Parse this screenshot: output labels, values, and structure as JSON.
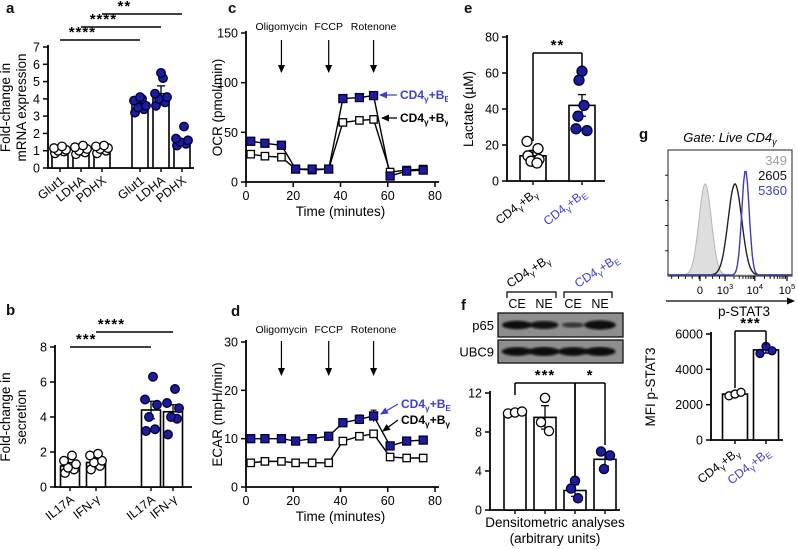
{
  "figure_type": "multi-panel scientific figure",
  "panel_labels": {
    "a": "a",
    "b": "b",
    "c": "c",
    "d": "d",
    "e": "e",
    "f": "f",
    "g": "g"
  },
  "colors": {
    "navy": "#1c1c9e",
    "blue_text": "#4040c2",
    "blue_line": "#3c3cba",
    "gray_text": "#9e9e9e",
    "gray_fill": "#dedede",
    "blot_bg": "#8e8e8e"
  },
  "chart_data": [
    {
      "panel": "a",
      "type": "bar",
      "ylabel": "Fold-change in\nmRNA expression",
      "ylim": [
        0,
        7
      ],
      "yticks": [
        0,
        1,
        2,
        3,
        4,
        5,
        6,
        7
      ],
      "categories": [
        "Glut1",
        "LDHA",
        "PDHX",
        "Glut1",
        "LDHA",
        "PDHX"
      ],
      "values": [
        1.0,
        1.0,
        1.1,
        3.7,
        4.3,
        1.5
      ],
      "errors": [
        0.1,
        0.12,
        0.1,
        0.2,
        0.45,
        0.2
      ],
      "point_styles": [
        "open",
        "open",
        "open",
        "navy",
        "navy",
        "navy"
      ],
      "points": [
        [
          0.85,
          0.95,
          1.0,
          1.05,
          1.15,
          1.25
        ],
        [
          0.8,
          0.9,
          1.0,
          1.1,
          1.2,
          1.3
        ],
        [
          0.85,
          1.0,
          1.1,
          1.15,
          1.25,
          1.3
        ],
        [
          3.2,
          3.4,
          3.5,
          3.6,
          3.9,
          4.0,
          4.1
        ],
        [
          3.6,
          3.8,
          4.0,
          4.1,
          4.3,
          5.2,
          5.5
        ],
        [
          1.3,
          1.4,
          1.5,
          1.6,
          1.7,
          2.4
        ]
      ],
      "sig": [
        {
          "from": 0,
          "to": 3,
          "label": "****"
        },
        {
          "from": 1,
          "to": 4,
          "label": "****"
        },
        {
          "from": 2,
          "to": 5,
          "label": "**"
        }
      ]
    },
    {
      "panel": "b",
      "type": "bar",
      "ylabel": "Fold-change in\nsecretion",
      "ylim": [
        0,
        8
      ],
      "yticks": [
        0,
        2,
        4,
        6,
        8
      ],
      "categories": [
        "IL17A",
        "IFN-γ",
        "IL17A",
        "IFN-γ"
      ],
      "values": [
        1.2,
        1.4,
        4.4,
        4.3
      ],
      "errors": [
        0.2,
        0.2,
        0.5,
        0.4
      ],
      "point_styles": [
        "open",
        "open",
        "navy",
        "navy"
      ],
      "points": [
        [
          0.8,
          1.0,
          1.1,
          1.3,
          1.5,
          1.8
        ],
        [
          1.0,
          1.2,
          1.4,
          1.5,
          1.8,
          1.9
        ],
        [
          3.2,
          3.3,
          4.0,
          4.7,
          5.0,
          6.3
        ],
        [
          3.0,
          3.9,
          4.0,
          4.5,
          4.8,
          5.6
        ]
      ],
      "sig": [
        {
          "from": 0,
          "to": 2,
          "label": "***"
        },
        {
          "from": 1,
          "to": 3,
          "label": "****"
        }
      ]
    },
    {
      "panel": "c",
      "type": "line",
      "ylabel": "OCR (pmol/min)",
      "xlabel": "Time (minutes)",
      "ylim": [
        0,
        150
      ],
      "yticks": [
        0,
        50,
        100,
        150
      ],
      "xlim": [
        0,
        80
      ],
      "xticks": [
        0,
        20,
        40,
        60,
        80
      ],
      "x": [
        2,
        8,
        15,
        21,
        28,
        35,
        41,
        48,
        54,
        61,
        68,
        75
      ],
      "annotations": [
        "Oligomycin",
        "FCCP",
        "Rotenone"
      ],
      "annotation_x": [
        15,
        35,
        54
      ],
      "series": [
        {
          "name": "CD4~γ~+B~E~",
          "style": "navy",
          "values": [
            41,
            39,
            37,
            13,
            13,
            13,
            84,
            85,
            87,
            6,
            11,
            12
          ]
        },
        {
          "name": "CD4~γ~+B~γ~",
          "style": "open",
          "values": [
            28,
            26,
            25,
            13,
            12,
            13,
            60,
            62,
            63,
            10,
            12,
            13
          ]
        }
      ]
    },
    {
      "panel": "d",
      "type": "line",
      "ylabel": "ECAR (mpH/min)",
      "xlabel": "Time (minutes)",
      "ylim": [
        0,
        30
      ],
      "yticks": [
        0,
        10,
        20,
        30
      ],
      "xlim": [
        0,
        80
      ],
      "xticks": [
        0,
        20,
        40,
        60,
        80
      ],
      "x": [
        2,
        8,
        15,
        21,
        28,
        35,
        41,
        48,
        54,
        61,
        68,
        75
      ],
      "annotations": [
        "Oligomycin",
        "FCCP",
        "Rotenone"
      ],
      "annotation_x": [
        15,
        35,
        54
      ],
      "series": [
        {
          "name": "CD4~γ~+B~E~",
          "style": "navy",
          "values": [
            10,
            10,
            10,
            9.5,
            10,
            10.5,
            13.3,
            14,
            14.7,
            8.5,
            9.5,
            9.7
          ],
          "errors": [
            0,
            0,
            0,
            0,
            0,
            0,
            0,
            0.9,
            1.2,
            0,
            0,
            0
          ]
        },
        {
          "name": "CD4~γ~+B~γ~",
          "style": "open",
          "values": [
            5,
            5.3,
            5.3,
            5,
            5,
            5,
            9.5,
            10.5,
            11,
            6.2,
            6,
            6
          ],
          "errors": [
            0,
            0,
            0,
            0,
            0,
            0,
            0,
            0.6,
            0.7,
            0,
            0,
            0
          ]
        }
      ]
    },
    {
      "panel": "e",
      "type": "bar",
      "ylabel": "Lactate (µM)",
      "ylim": [
        0,
        80
      ],
      "yticks": [
        0,
        20,
        40,
        60,
        80
      ],
      "categories": [
        "CD4~γ~+B~γ~",
        "CD4~γ~+B~E~"
      ],
      "cat_colors": [
        "black",
        "blue"
      ],
      "values": [
        14,
        42
      ],
      "errors": [
        3,
        6
      ],
      "point_styles": [
        "open",
        "navy"
      ],
      "points": [
        [
          22,
          18,
          14,
          12,
          11,
          10
        ],
        [
          61,
          56,
          42,
          36,
          29,
          28
        ]
      ],
      "sig": [
        {
          "from": 0,
          "to": 1,
          "label": "**"
        }
      ]
    },
    {
      "panel": "f-blot",
      "type": "blot",
      "group_labels": [
        {
          "text": "CD4~γ~+B~γ~",
          "color": "black"
        },
        {
          "text": "CD4~γ~+B~E~",
          "color": "blue"
        }
      ],
      "lane_labels": [
        "CE",
        "NE",
        "CE",
        "NE"
      ],
      "rows": [
        {
          "label": "p65",
          "bands": [
            1.0,
            0.92,
            0.38,
            1.15
          ]
        },
        {
          "label": "UBC9",
          "bands": [
            1.05,
            1.1,
            1.05,
            1.1
          ]
        }
      ]
    },
    {
      "panel": "f-bar",
      "type": "bar",
      "xlabel": "Densitometric analyses\n(arbitrary units)",
      "ylim": [
        0,
        12
      ],
      "yticks": [
        0,
        4,
        8,
        12
      ],
      "values": [
        10,
        9.5,
        2,
        5.2
      ],
      "errors": [
        0.2,
        1.2,
        0.6,
        0.7
      ],
      "point_styles": [
        "open",
        "open",
        "navy",
        "navy"
      ],
      "points": [
        [
          9.9,
          10,
          10.1
        ],
        [
          11.5,
          9.0,
          8.1
        ],
        [
          3.0,
          2.2,
          1.2
        ],
        [
          6.0,
          5.6,
          4.2
        ]
      ],
      "sig": [
        {
          "from": 0,
          "to": 2,
          "label": "***"
        },
        {
          "from": 2,
          "to": 3,
          "label": "*"
        }
      ]
    },
    {
      "panel": "g-hist",
      "type": "flow-histogram",
      "title": "Gate: Live CD4~γ~",
      "xlabel": "p-STAT3",
      "xticks": [
        "0",
        "10^3^",
        "10^4^",
        "10^5^"
      ],
      "values": [
        {
          "label": "349",
          "color": "gray"
        },
        {
          "label": "2605",
          "color": "black"
        },
        {
          "label": "5360",
          "color": "blue"
        }
      ],
      "peaks": [
        {
          "center": 0.3,
          "sd": 0.05,
          "height": 0.8,
          "style": "grayfill"
        },
        {
          "center": 0.54,
          "sd": 0.055,
          "height": 0.8,
          "style": "black"
        },
        {
          "center": 0.625,
          "sd": 0.03,
          "height": 0.92,
          "style": "blue"
        }
      ]
    },
    {
      "panel": "g-bar",
      "type": "bar",
      "ylabel": "MFI p-STAT3",
      "ylim": [
        0,
        6000
      ],
      "yticks": [
        0,
        2000,
        4000,
        6000
      ],
      "categories": [
        "CD4~γ~+B~γ~",
        "CD4~γ~+B~E~"
      ],
      "cat_colors": [
        "black",
        "blue"
      ],
      "values": [
        2600,
        5100
      ],
      "errors": [
        120,
        180
      ],
      "point_styles": [
        "open",
        "navy"
      ],
      "points": [
        [
          2500,
          2600,
          2700
        ],
        [
          4900,
          5050,
          5300
        ]
      ],
      "sig": [
        {
          "from": 0,
          "to": 1,
          "label": "***"
        }
      ]
    }
  ]
}
